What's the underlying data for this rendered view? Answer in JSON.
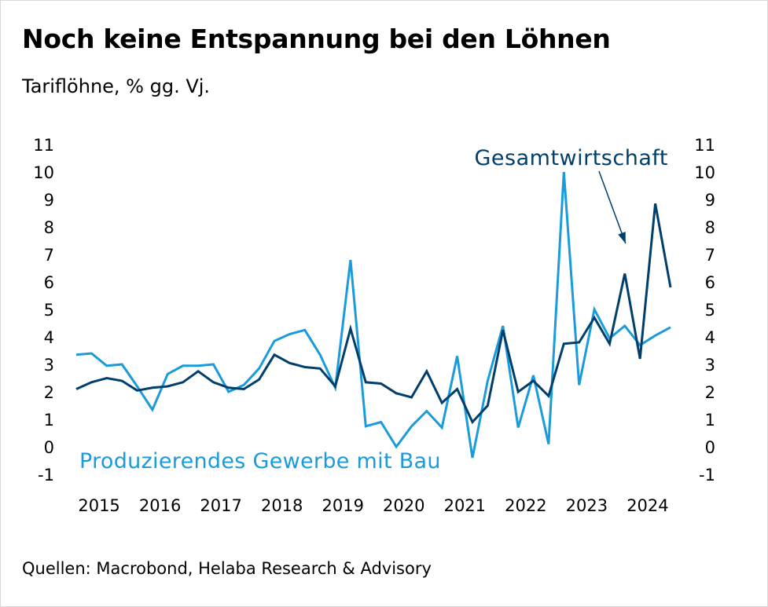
{
  "title": "Noch keine Entspannung bei den Löhnen",
  "subtitle": "Tariflöhne, % gg. Vj.",
  "source": "Quellen: Macrobond, Helaba Research & Advisory",
  "chart_data": {
    "type": "line",
    "x_tick_labels": [
      "2015",
      "2016",
      "2017",
      "2018",
      "2019",
      "2020",
      "2021",
      "2022",
      "2023",
      "2024"
    ],
    "x_start": 2015.0,
    "x_step": 0.25,
    "ylim": [
      -1,
      11
    ],
    "y_ticks": [
      -1,
      0,
      1,
      2,
      3,
      4,
      5,
      6,
      7,
      8,
      9,
      10,
      11
    ],
    "grid": false,
    "annotations": [
      {
        "text": "Gesamtwirtschaft",
        "series": "Gesamtwirtschaft",
        "arrow_to": {
          "x": 2024.0,
          "y": 7.4
        }
      },
      {
        "text": "Produzierendes Gewerbe mit Bau",
        "series": "Produzierendes Gewerbe mit Bau"
      }
    ],
    "series": [
      {
        "name": "Gesamtwirtschaft",
        "color": "#003f6b",
        "values": [
          2.1,
          2.35,
          2.5,
          2.4,
          2.05,
          2.15,
          2.2,
          2.35,
          2.75,
          2.35,
          2.15,
          2.1,
          2.45,
          3.35,
          3.05,
          2.9,
          2.85,
          2.2,
          4.3,
          2.35,
          2.3,
          1.95,
          1.8,
          2.75,
          1.6,
          2.1,
          0.9,
          1.5,
          4.25,
          2.0,
          2.4,
          1.85,
          3.75,
          3.8,
          4.7,
          3.75,
          6.3,
          3.2,
          8.85,
          5.8
        ]
      },
      {
        "name": "Produzierendes Gewerbe mit Bau",
        "color": "#1a9bdc",
        "values": [
          3.35,
          3.4,
          2.95,
          3.0,
          2.2,
          1.35,
          2.65,
          2.95,
          2.95,
          3.0,
          2.0,
          2.25,
          2.85,
          3.85,
          4.1,
          4.25,
          3.35,
          2.15,
          6.8,
          0.75,
          0.9,
          0.0,
          0.75,
          1.3,
          0.7,
          3.3,
          -0.4,
          2.4,
          4.4,
          0.7,
          2.6,
          0.1,
          10.0,
          2.25,
          5.0,
          3.95,
          4.4,
          3.7,
          4.05,
          4.35
        ]
      }
    ]
  }
}
